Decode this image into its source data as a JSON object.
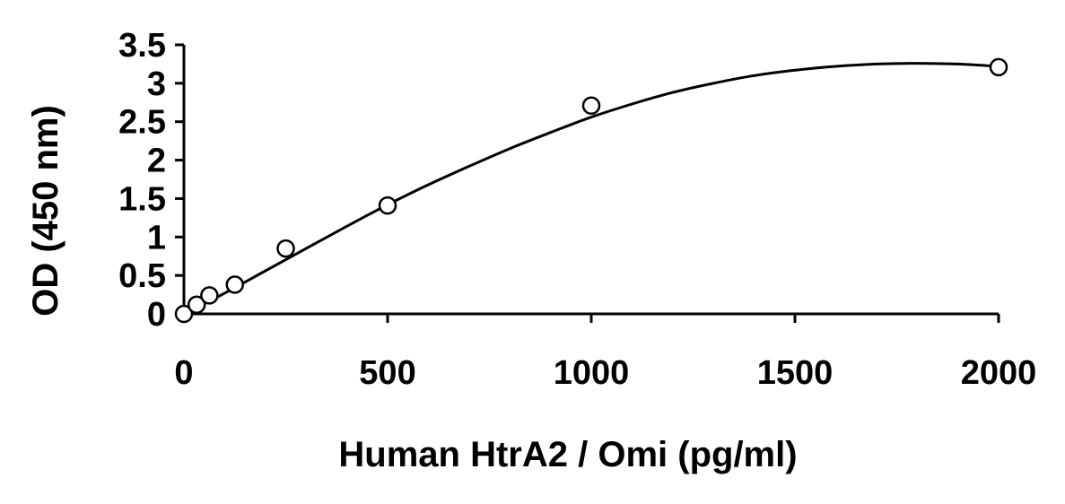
{
  "chart_data": {
    "type": "scatter",
    "title": "",
    "xlabel": "Human HtrA2 / Omi (pg/ml)",
    "ylabel": "OD (450 nm)",
    "xlim": [
      0,
      2000
    ],
    "ylim": [
      0,
      3.5
    ],
    "x_ticks": [
      "0",
      "500",
      "1000",
      "1500",
      "2000"
    ],
    "y_ticks": [
      "0",
      "0.5",
      "1",
      "1.5",
      "2",
      "2.5",
      "3",
      "3.5"
    ],
    "grid": false,
    "legend": "none",
    "points": [
      {
        "x": 0,
        "y": 0.0
      },
      {
        "x": 31.25,
        "y": 0.12
      },
      {
        "x": 62.5,
        "y": 0.24
      },
      {
        "x": 125,
        "y": 0.38
      },
      {
        "x": 250,
        "y": 0.85
      },
      {
        "x": 500,
        "y": 1.41
      },
      {
        "x": 1000,
        "y": 2.71
      },
      {
        "x": 2000,
        "y": 3.21
      }
    ],
    "fit_curve": {
      "type": "cubic",
      "points": [
        {
          "x": 0,
          "y": 0.0
        },
        {
          "x": 100,
          "y": 0.27
        },
        {
          "x": 200,
          "y": 0.56
        },
        {
          "x": 300,
          "y": 0.85
        },
        {
          "x": 400,
          "y": 1.14
        },
        {
          "x": 500,
          "y": 1.42
        },
        {
          "x": 600,
          "y": 1.68
        },
        {
          "x": 700,
          "y": 1.92
        },
        {
          "x": 800,
          "y": 2.15
        },
        {
          "x": 900,
          "y": 2.36
        },
        {
          "x": 1000,
          "y": 2.56
        },
        {
          "x": 1100,
          "y": 2.73
        },
        {
          "x": 1200,
          "y": 2.88
        },
        {
          "x": 1300,
          "y": 3.0
        },
        {
          "x": 1400,
          "y": 3.1
        },
        {
          "x": 1500,
          "y": 3.17
        },
        {
          "x": 1600,
          "y": 3.22
        },
        {
          "x": 1700,
          "y": 3.25
        },
        {
          "x": 1800,
          "y": 3.26
        },
        {
          "x": 1900,
          "y": 3.25
        },
        {
          "x": 2000,
          "y": 3.22
        }
      ]
    },
    "colors": {
      "axis": "#000000",
      "marker_stroke": "#000000",
      "marker_fill": "#ffffff",
      "curve": "#000000"
    }
  }
}
